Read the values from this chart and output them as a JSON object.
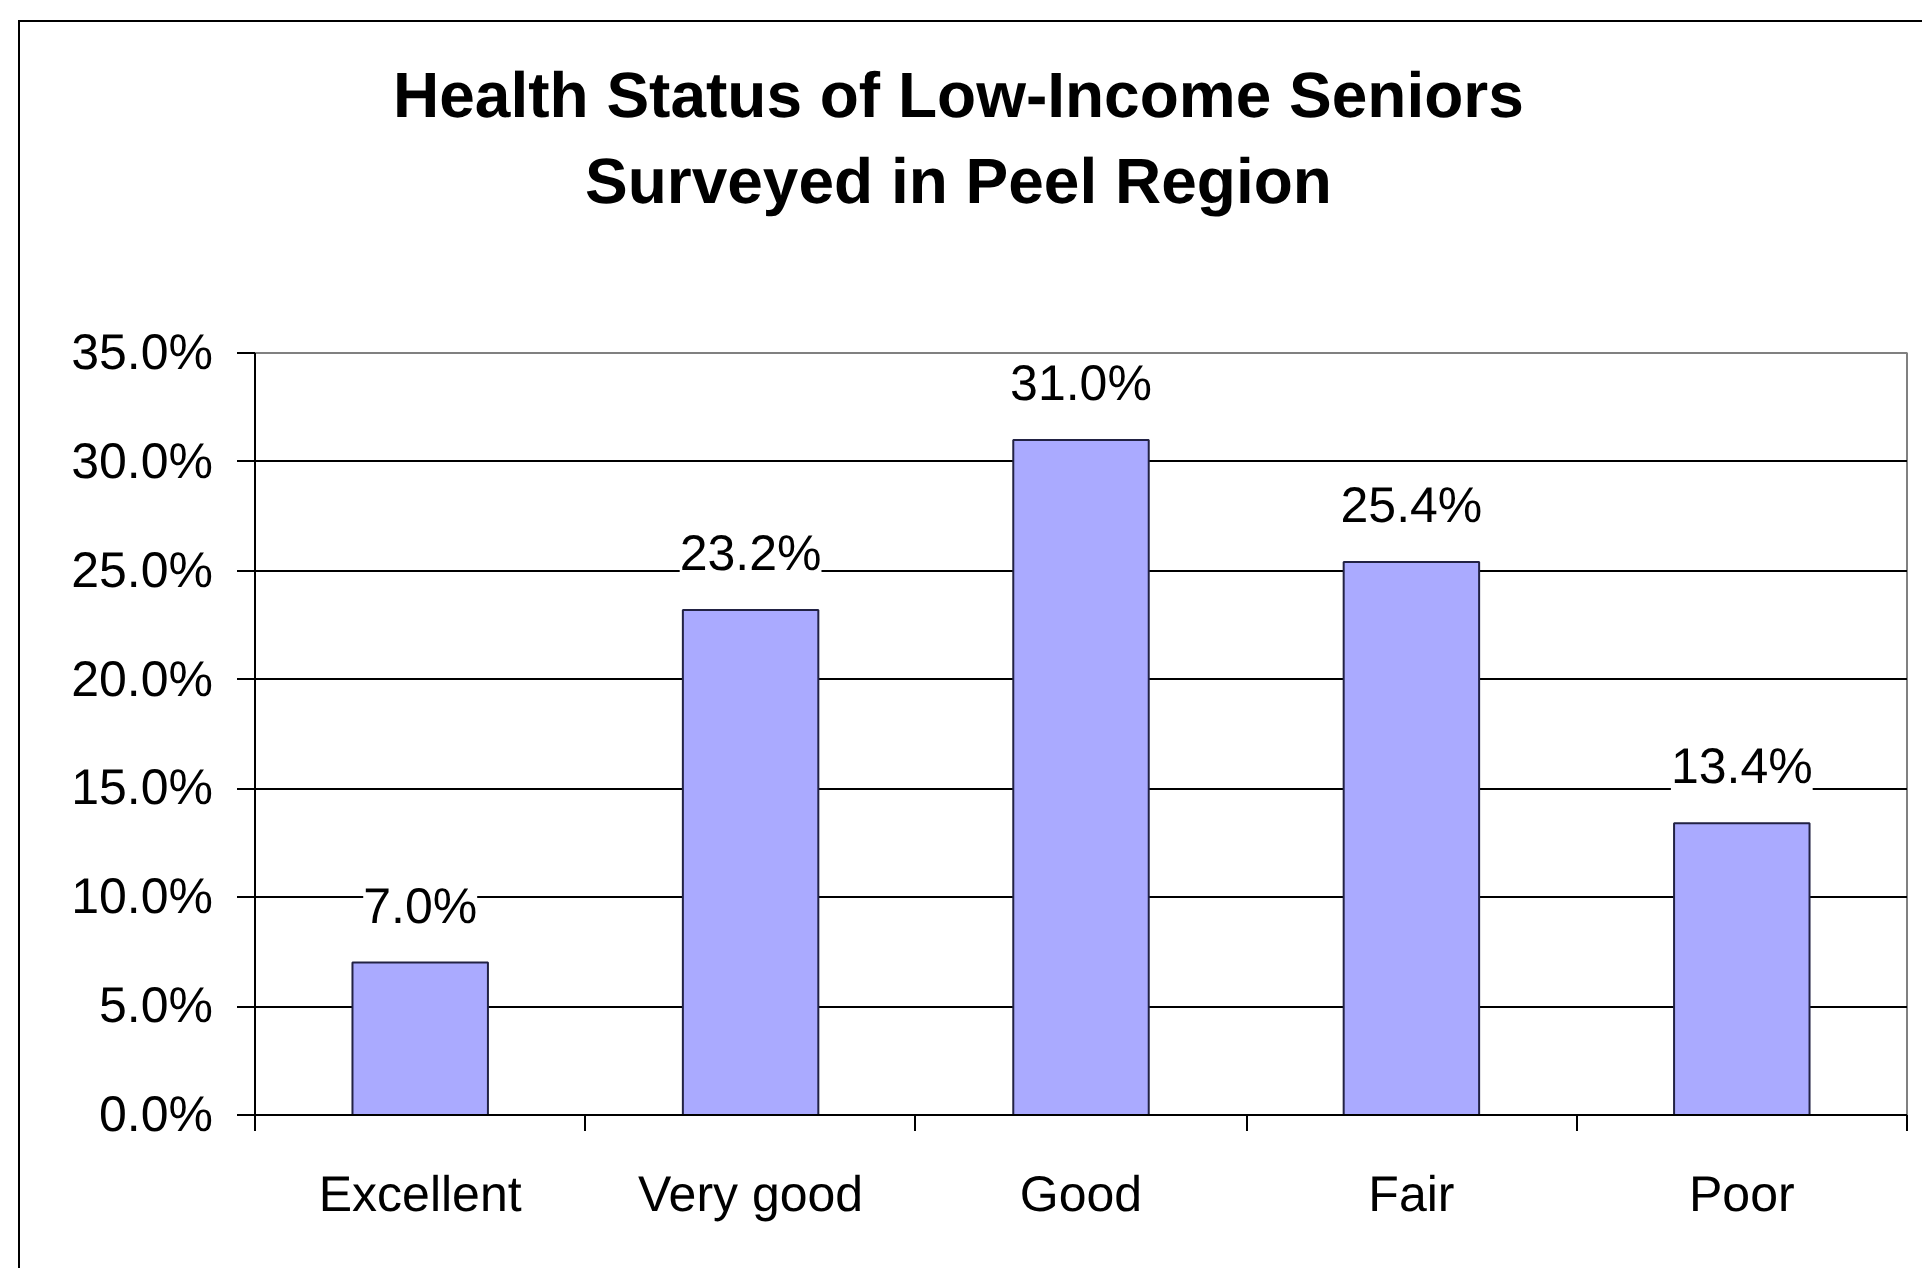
{
  "chart_data": {
    "type": "bar",
    "title": "Health Status of Low-Income Seniors\nSurveyed in Peel Region",
    "categories": [
      "Excellent",
      "Very good",
      "Good",
      "Fair",
      "Poor"
    ],
    "values": [
      7.0,
      23.2,
      31.0,
      25.4,
      13.4
    ],
    "value_labels": [
      "7.0%",
      "23.2%",
      "31.0%",
      "25.4%",
      "13.4%"
    ],
    "color": "#aaaaff",
    "ylim": [
      0,
      35
    ],
    "yticks": [
      {
        "value": 0,
        "label": "0.0%"
      },
      {
        "value": 5,
        "label": "5.0%"
      },
      {
        "value": 10,
        "label": "10.0%"
      },
      {
        "value": 15,
        "label": "15.0%"
      },
      {
        "value": 20,
        "label": "20.0%"
      },
      {
        "value": 25,
        "label": "25.0%"
      },
      {
        "value": 30,
        "label": "30.0%"
      },
      {
        "value": 35,
        "label": "35.0%"
      }
    ],
    "grid": "y"
  }
}
